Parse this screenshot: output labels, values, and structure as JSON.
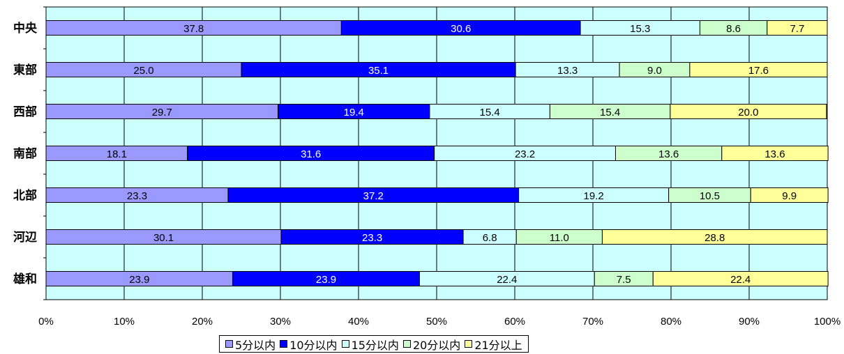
{
  "chart_data": {
    "type": "bar",
    "orientation": "horizontal",
    "stacked": true,
    "categories": [
      "中央",
      "東部",
      "西部",
      "南部",
      "北部",
      "河辺",
      "雄和"
    ],
    "series": [
      {
        "name": "5分以内",
        "color": "#9999ff",
        "values": [
          37.8,
          25.0,
          29.7,
          18.1,
          23.3,
          30.1,
          23.9
        ]
      },
      {
        "name": "10分以内",
        "color": "#0000ff",
        "values": [
          30.6,
          35.1,
          19.4,
          31.6,
          37.2,
          23.3,
          23.9
        ]
      },
      {
        "name": "15分以内",
        "color": "#ccffff",
        "values": [
          15.3,
          13.3,
          15.4,
          23.2,
          19.2,
          6.8,
          22.4
        ]
      },
      {
        "name": "20分以内",
        "color": "#ccffcc",
        "values": [
          8.6,
          9.0,
          15.4,
          13.6,
          10.5,
          11.0,
          7.5
        ]
      },
      {
        "name": "21分以上",
        "color": "#ffff99",
        "values": [
          7.7,
          17.6,
          20.0,
          13.6,
          9.9,
          28.8,
          22.4
        ]
      }
    ],
    "x_ticks": [
      "0%",
      "10%",
      "20%",
      "30%",
      "40%",
      "50%",
      "60%",
      "70%",
      "80%",
      "90%",
      "100%"
    ],
    "xlim": [
      0,
      100
    ],
    "grid": true,
    "legend_position": "bottom",
    "plot_background": "#ccffff"
  }
}
